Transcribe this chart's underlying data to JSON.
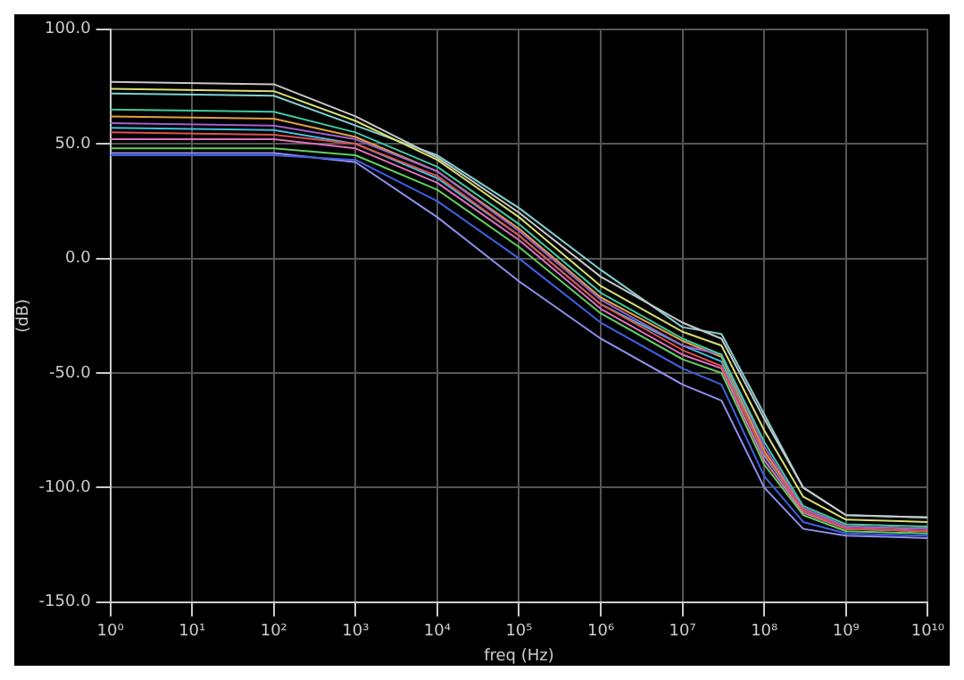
{
  "chart_data": {
    "type": "line",
    "xlabel": "freq (Hz)",
    "ylabel": "(dB)",
    "log": "x",
    "grid": true,
    "legend": false,
    "marker": "none",
    "line_style": "solid",
    "x": [
      1,
      100,
      1000,
      10000,
      100000,
      1000000,
      10000000,
      30000000,
      100000000,
      300000000,
      1000000000,
      10000000000
    ],
    "xlim": [
      1,
      10000000000
    ],
    "ylim": [
      -150,
      100
    ],
    "xticks": [
      {
        "value": 1,
        "label": "10⁰"
      },
      {
        "value": 10,
        "label": "10¹"
      },
      {
        "value": 100,
        "label": "10²"
      },
      {
        "value": 1000,
        "label": "10³"
      },
      {
        "value": 10000,
        "label": "10⁴"
      },
      {
        "value": 100000,
        "label": "10⁵"
      },
      {
        "value": 1000000,
        "label": "10⁶"
      },
      {
        "value": 10000000,
        "label": "10⁷"
      },
      {
        "value": 100000000,
        "label": "10⁸"
      },
      {
        "value": 1000000000,
        "label": "10⁹"
      },
      {
        "value": 10000000000,
        "label": "10¹⁰"
      }
    ],
    "yticks": [
      {
        "value": -150,
        "label": "-150.0"
      },
      {
        "value": -100,
        "label": "-100.0"
      },
      {
        "value": -50,
        "label": "-50.0"
      },
      {
        "value": 0,
        "label": "0.0"
      },
      {
        "value": 50,
        "label": "50.0"
      },
      {
        "value": 100,
        "label": "100.0"
      }
    ],
    "series": [
      {
        "color": "#c8c8c8",
        "values": [
          77,
          76,
          62,
          44,
          20,
          -8,
          -28,
          -35,
          -70,
          -100,
          -112,
          -113
        ]
      },
      {
        "color": "#d8e070",
        "values": [
          74,
          73,
          60,
          43,
          18,
          -12,
          -32,
          -38,
          -75,
          -104,
          -114,
          -115
        ]
      },
      {
        "color": "#40c8a0",
        "values": [
          65,
          64,
          55,
          40,
          15,
          -15,
          -35,
          -42,
          -80,
          -108,
          -116,
          -117
        ]
      },
      {
        "color": "#e05050",
        "values": [
          55,
          54,
          50,
          36,
          10,
          -20,
          -40,
          -47,
          -85,
          -110,
          -118,
          -119
        ]
      },
      {
        "color": "#a060d0",
        "values": [
          59,
          58,
          52,
          38,
          12,
          -18,
          -38,
          -42,
          -82,
          -109,
          -117,
          -118
        ]
      },
      {
        "color": "#4060e0",
        "values": [
          45,
          45,
          43,
          25,
          0,
          -28,
          -48,
          -55,
          -95,
          -115,
          -120,
          -121
        ]
      },
      {
        "color": "#60d060",
        "values": [
          48,
          48,
          45,
          30,
          5,
          -24,
          -44,
          -50,
          -90,
          -112,
          -119,
          -120
        ]
      },
      {
        "color": "#e070c0",
        "values": [
          52,
          52,
          48,
          33,
          8,
          -22,
          -42,
          -48,
          -88,
          -111,
          -118,
          -119
        ]
      },
      {
        "color": "#40c0e0",
        "values": [
          57,
          56,
          50,
          35,
          10,
          -20,
          -38,
          -45,
          -86,
          -110,
          -118,
          -119
        ]
      },
      {
        "color": "#e0a040",
        "values": [
          62,
          61,
          53,
          38,
          13,
          -17,
          -36,
          -43,
          -84,
          -109,
          -117,
          -118
        ]
      },
      {
        "color": "#9090f0",
        "values": [
          46,
          46,
          42,
          18,
          -10,
          -35,
          -55,
          -62,
          -100,
          -118,
          -121,
          -122
        ]
      },
      {
        "color": "#80d0d0",
        "values": [
          72,
          71,
          58,
          45,
          22,
          -5,
          -30,
          -33,
          -68,
          -100,
          -112,
          -113
        ]
      }
    ]
  }
}
